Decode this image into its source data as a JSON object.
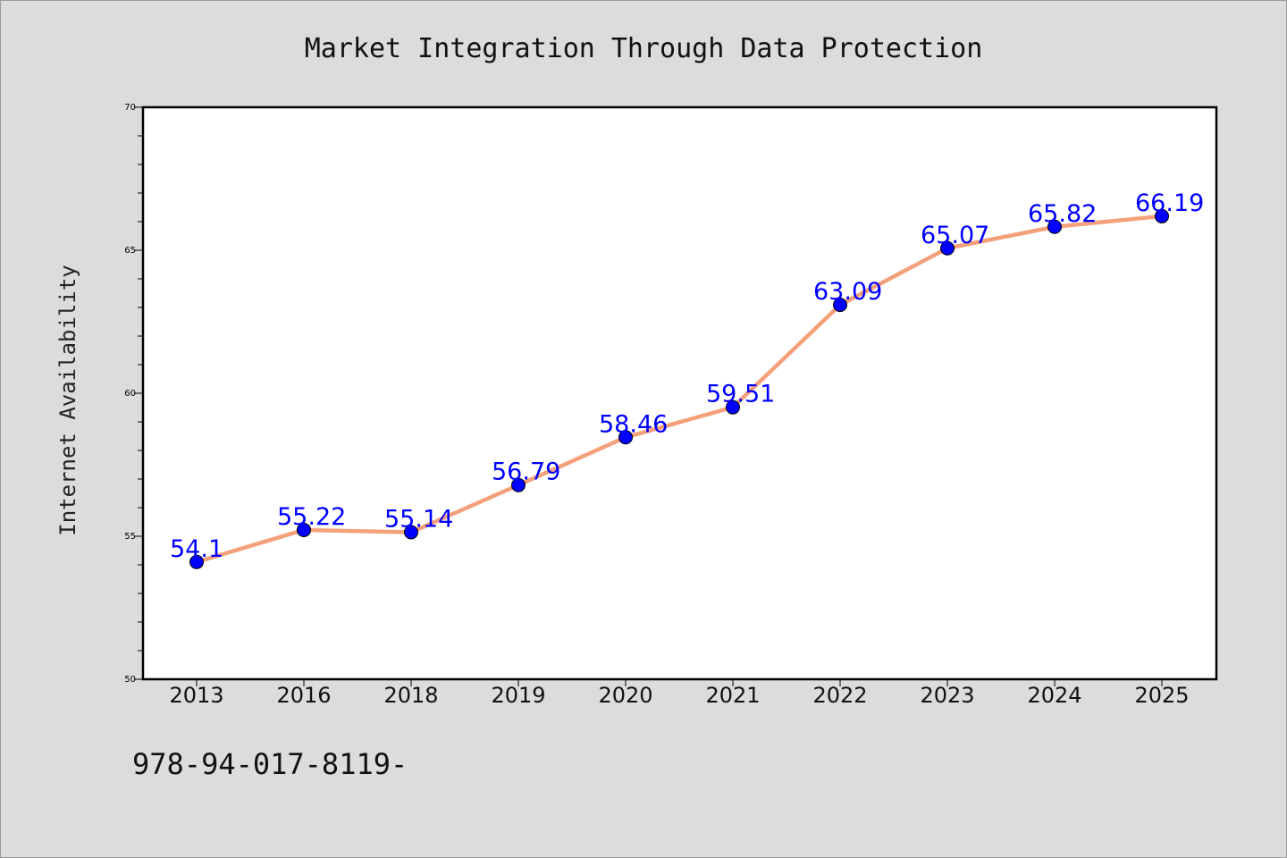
{
  "chart_data": {
    "type": "line",
    "title": "Market Integration Through Data Protection",
    "xlabel": "",
    "ylabel": "Internet Availability",
    "categories": [
      "2013",
      "2016",
      "2018",
      "2019",
      "2020",
      "2021",
      "2022",
      "2023",
      "2024",
      "2025"
    ],
    "series": [
      {
        "values": [
          54.1,
          55.22,
          55.14,
          56.79,
          58.46,
          59.51,
          63.09,
          65.07,
          65.82,
          66.19
        ],
        "labels": [
          "54.1",
          "55.22",
          "55.14",
          "56.79",
          "58.46",
          "59.51",
          "63.09",
          "65.07",
          "65.82",
          "66.19"
        ]
      }
    ],
    "ylim": [
      50,
      70
    ],
    "yticks": [
      "50",
      "55",
      "60",
      "65",
      "70"
    ],
    "grid": false,
    "line_color": "#f4a07a",
    "marker_color": "#0000ff",
    "label_color": "#0000ff"
  },
  "footer": {
    "isbn_text": "978-94-017-8119-"
  }
}
